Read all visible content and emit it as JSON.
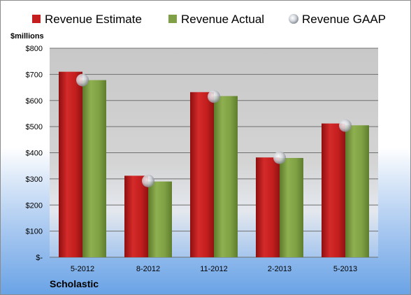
{
  "chart_data": {
    "type": "bar",
    "title": "",
    "ylabel": "$millions",
    "xlabel": "",
    "ylim": [
      0,
      800
    ],
    "ytick_values": [
      0,
      100,
      200,
      300,
      400,
      500,
      600,
      700,
      800
    ],
    "ytick_labels": [
      "$-",
      "$100",
      "$200",
      "$300",
      "$400",
      "$500",
      "$600",
      "$700",
      "$800"
    ],
    "categories": [
      "5-2012",
      "8-2012",
      "11-2012",
      "2-2013",
      "5-2013"
    ],
    "series": [
      {
        "name": "Revenue Estimate",
        "kind": "bar",
        "color": "#c41e1e",
        "values": [
          710,
          312,
          632,
          382,
          512
        ]
      },
      {
        "name": "Revenue Actual",
        "kind": "bar",
        "color": "#7fa044",
        "values": [
          678,
          290,
          617,
          380,
          505
        ]
      },
      {
        "name": "Revenue GAAP",
        "kind": "marker",
        "color": "#c8ccd4",
        "values": [
          678,
          292,
          615,
          381,
          504
        ]
      }
    ],
    "grid": true,
    "legend_position": "top"
  },
  "footer": {
    "company": "Scholastic"
  }
}
